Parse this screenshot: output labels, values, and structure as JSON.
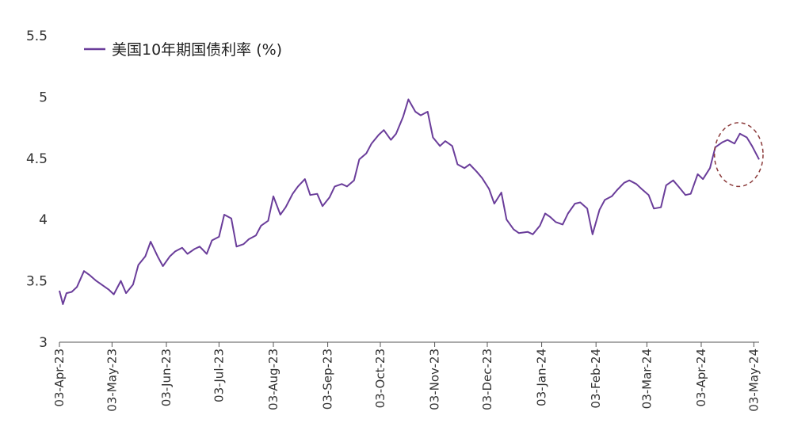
{
  "colors": {
    "series": "#6a3d9a",
    "annotation": "#8b3a3a",
    "axis": "#555555"
  },
  "chart_data": {
    "type": "line",
    "title": "",
    "xlabel": "",
    "ylabel": "",
    "ylim": [
      3,
      5.5
    ],
    "yticks": [
      "3",
      "3.5",
      "4",
      "4.5",
      "5",
      "5.5"
    ],
    "xlim": [
      "2023-04-03",
      "2024-05-06"
    ],
    "xticks": [
      "03-Apr-23",
      "03-May-23",
      "03-Jun-23",
      "03-Jul-23",
      "03-Aug-23",
      "03-Sep-23",
      "03-Oct-23",
      "03-Nov-23",
      "03-Dec-23",
      "03-Jan-24",
      "03-Feb-24",
      "03-Mar-24",
      "03-Apr-24",
      "03-May-24"
    ],
    "grid": false,
    "legend_position": "top-left",
    "series": [
      {
        "name": "美国10年期国债利率 (%)",
        "x": [
          "2023-04-03",
          "2023-04-05",
          "2023-04-07",
          "2023-04-10",
          "2023-04-13",
          "2023-04-17",
          "2023-04-20",
          "2023-04-24",
          "2023-04-27",
          "2023-05-01",
          "2023-05-04",
          "2023-05-08",
          "2023-05-11",
          "2023-05-15",
          "2023-05-18",
          "2023-05-22",
          "2023-05-25",
          "2023-05-29",
          "2023-06-01",
          "2023-06-05",
          "2023-06-08",
          "2023-06-12",
          "2023-06-15",
          "2023-06-19",
          "2023-06-22",
          "2023-06-26",
          "2023-06-29",
          "2023-07-03",
          "2023-07-06",
          "2023-07-10",
          "2023-07-13",
          "2023-07-17",
          "2023-07-20",
          "2023-07-24",
          "2023-07-27",
          "2023-07-31",
          "2023-08-03",
          "2023-08-07",
          "2023-08-10",
          "2023-08-14",
          "2023-08-17",
          "2023-08-21",
          "2023-08-24",
          "2023-08-28",
          "2023-08-31",
          "2023-09-04",
          "2023-09-07",
          "2023-09-11",
          "2023-09-14",
          "2023-09-18",
          "2023-09-21",
          "2023-09-25",
          "2023-09-28",
          "2023-10-02",
          "2023-10-05",
          "2023-10-09",
          "2023-10-12",
          "2023-10-16",
          "2023-10-19",
          "2023-10-23",
          "2023-10-26",
          "2023-10-30",
          "2023-11-02",
          "2023-11-06",
          "2023-11-09",
          "2023-11-13",
          "2023-11-16",
          "2023-11-20",
          "2023-11-23",
          "2023-11-27",
          "2023-11-30",
          "2023-12-04",
          "2023-12-07",
          "2023-12-11",
          "2023-12-14",
          "2023-12-18",
          "2023-12-21",
          "2023-12-26",
          "2023-12-29",
          "2024-01-02",
          "2024-01-05",
          "2024-01-08",
          "2024-01-11",
          "2024-01-15",
          "2024-01-18",
          "2024-01-22",
          "2024-01-25",
          "2024-01-29",
          "2024-02-01",
          "2024-02-05",
          "2024-02-08",
          "2024-02-12",
          "2024-02-15",
          "2024-02-19",
          "2024-02-22",
          "2024-02-26",
          "2024-02-29",
          "2024-03-04",
          "2024-03-07",
          "2024-03-11",
          "2024-03-14",
          "2024-03-18",
          "2024-03-21",
          "2024-03-25",
          "2024-03-28",
          "2024-04-01",
          "2024-04-04",
          "2024-04-08",
          "2024-04-11",
          "2024-04-15",
          "2024-04-18",
          "2024-04-22",
          "2024-04-25",
          "2024-04-29",
          "2024-05-02",
          "2024-05-06"
        ],
        "values": [
          3.42,
          3.31,
          3.4,
          3.41,
          3.45,
          3.58,
          3.55,
          3.5,
          3.47,
          3.43,
          3.39,
          3.5,
          3.4,
          3.47,
          3.63,
          3.7,
          3.82,
          3.7,
          3.62,
          3.7,
          3.74,
          3.77,
          3.72,
          3.76,
          3.78,
          3.72,
          3.83,
          3.86,
          4.04,
          4.01,
          3.78,
          3.8,
          3.84,
          3.87,
          3.95,
          3.99,
          4.19,
          4.04,
          4.1,
          4.21,
          4.27,
          4.33,
          4.2,
          4.21,
          4.11,
          4.18,
          4.27,
          4.29,
          4.27,
          4.32,
          4.49,
          4.54,
          4.62,
          4.69,
          4.73,
          4.65,
          4.7,
          4.84,
          4.98,
          4.88,
          4.85,
          4.88,
          4.67,
          4.6,
          4.64,
          4.6,
          4.45,
          4.42,
          4.45,
          4.39,
          4.34,
          4.25,
          4.13,
          4.22,
          4.0,
          3.92,
          3.89,
          3.9,
          3.88,
          3.95,
          4.05,
          4.02,
          3.98,
          3.96,
          4.05,
          4.13,
          4.14,
          4.09,
          3.88,
          4.08,
          4.16,
          4.19,
          4.24,
          4.3,
          4.32,
          4.29,
          4.25,
          4.2,
          4.09,
          4.1,
          4.28,
          4.32,
          4.27,
          4.2,
          4.21,
          4.37,
          4.33,
          4.42,
          4.59,
          4.63,
          4.65,
          4.62,
          4.7,
          4.67,
          4.6,
          4.49
        ]
      }
    ],
    "annotations": [
      {
        "type": "ellipse",
        "style": "dashed",
        "target_x": [
          "2024-04-11",
          "2024-05-06"
        ],
        "target_y": [
          4.27,
          4.79
        ]
      }
    ]
  }
}
